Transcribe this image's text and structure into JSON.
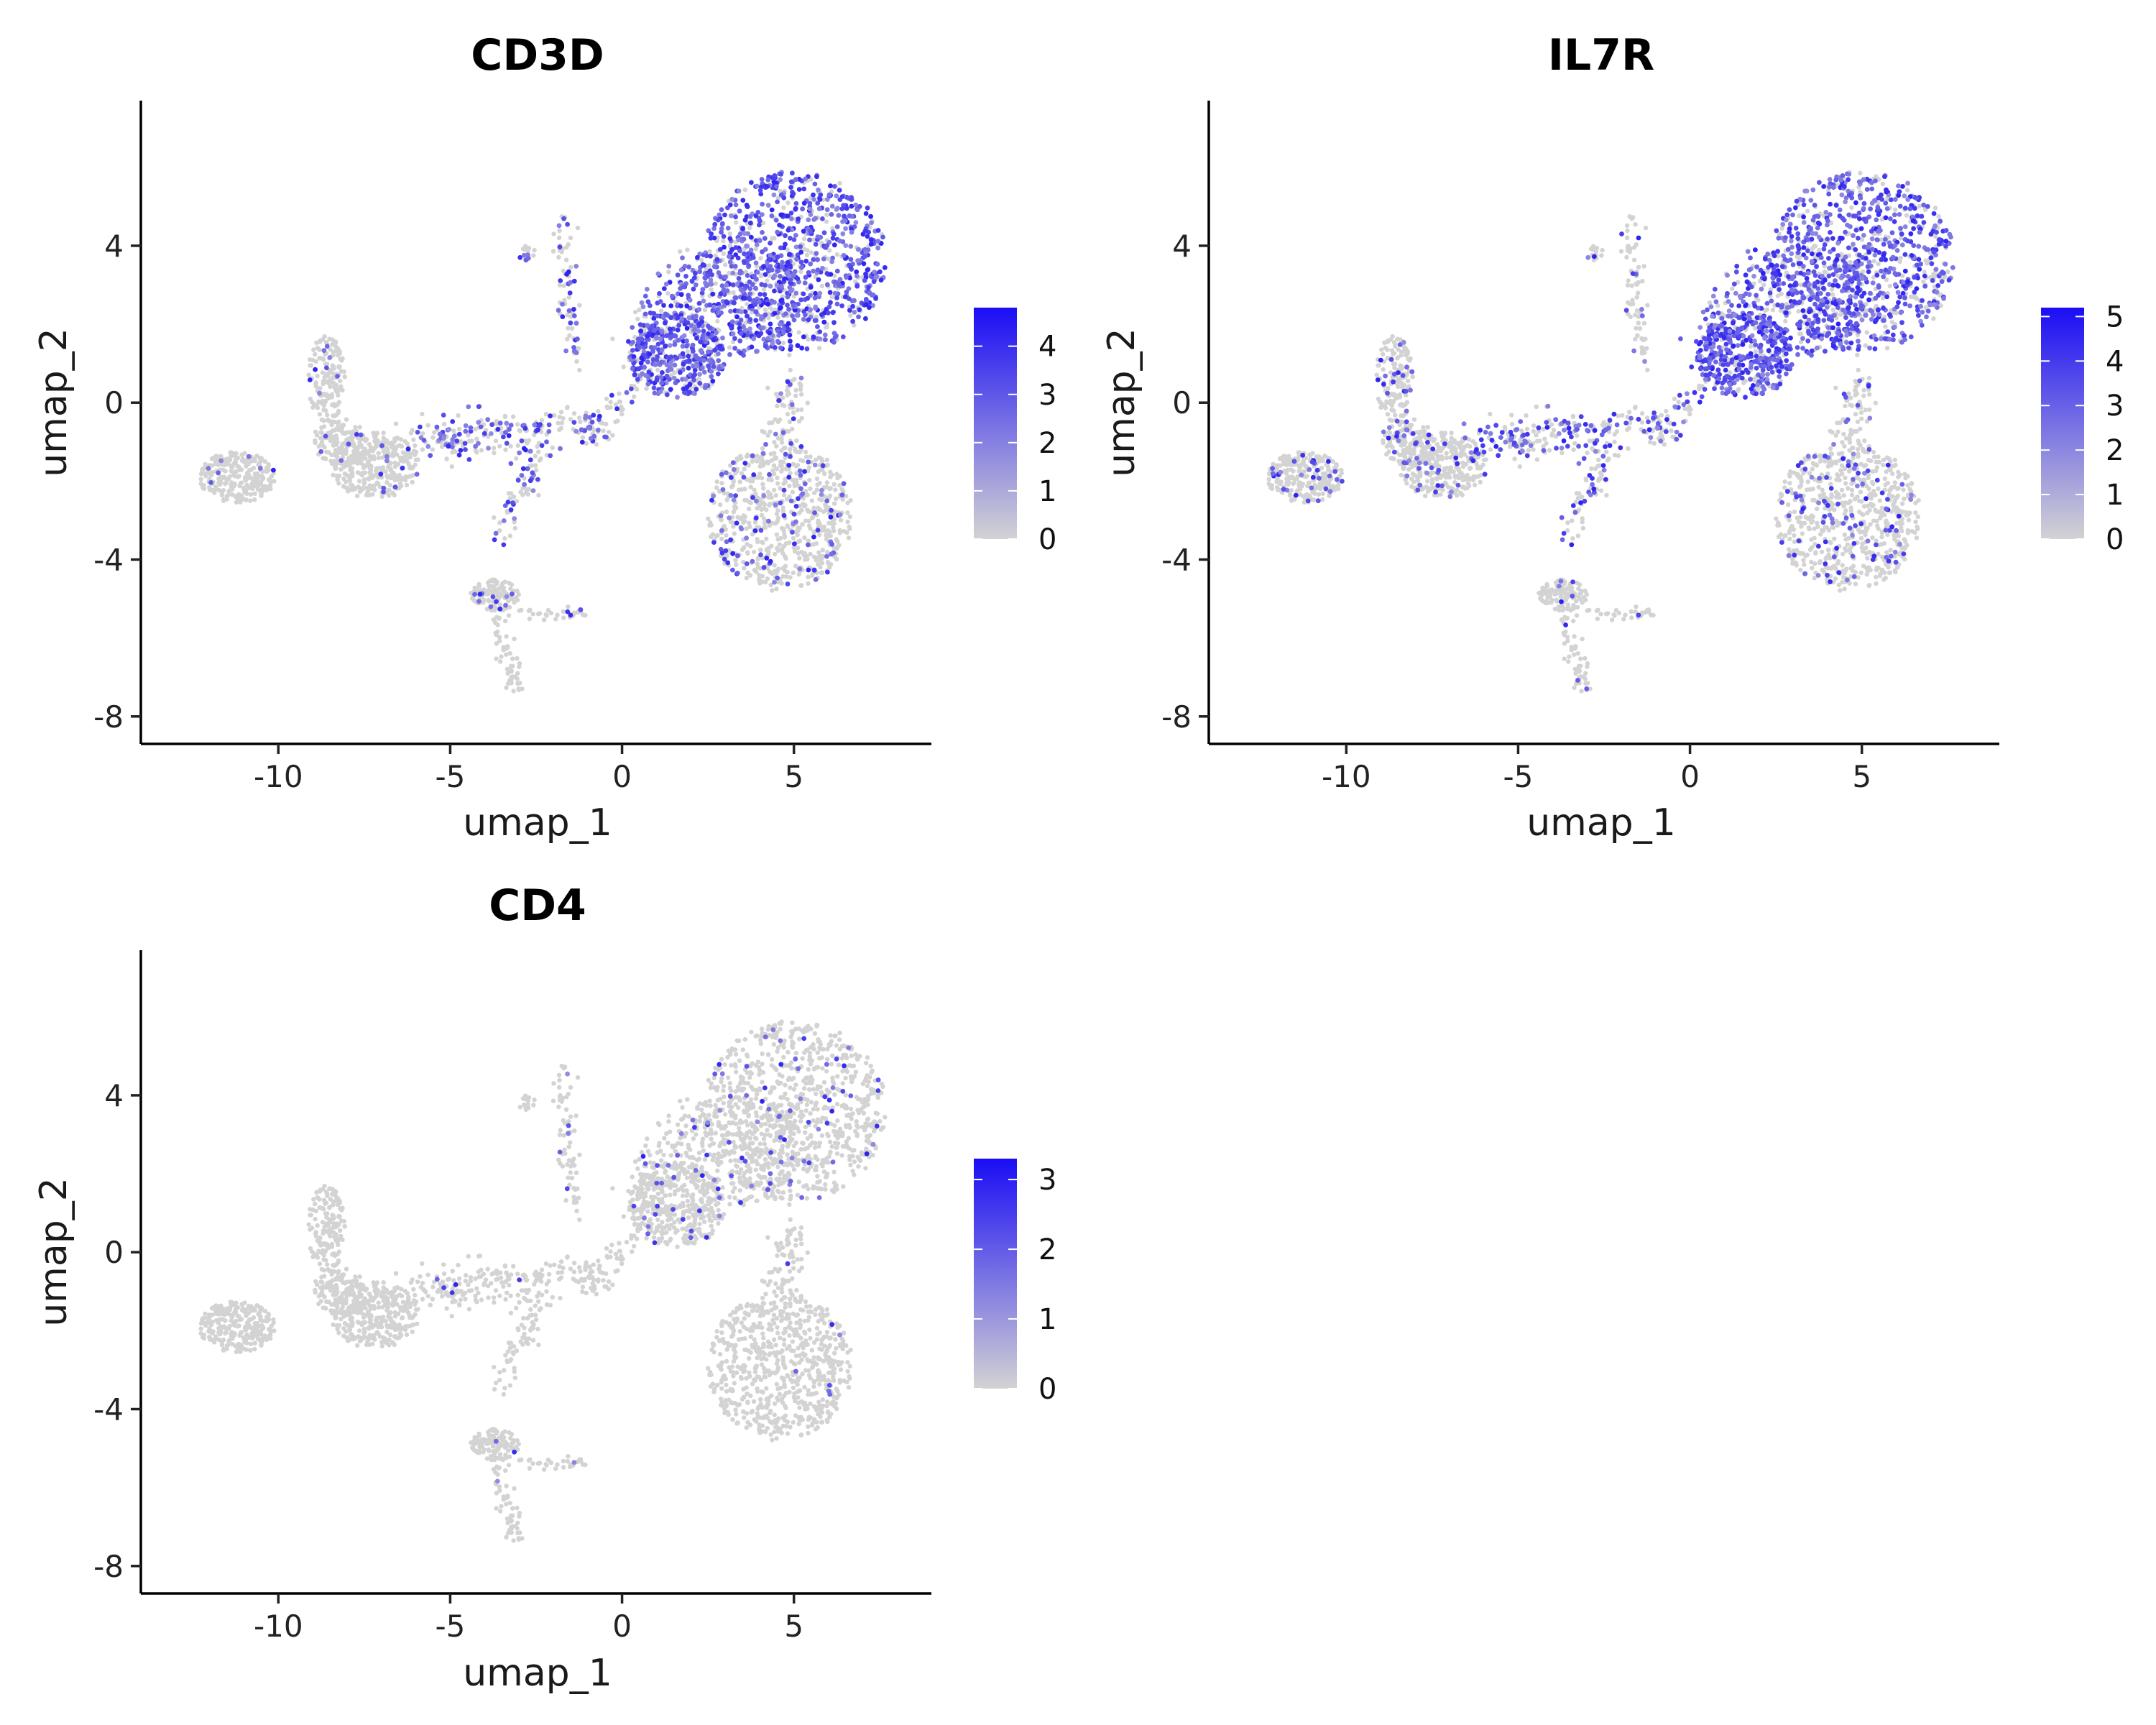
{
  "chart_data": [
    {
      "type": "scatter",
      "title": "CD3D",
      "xlabel": "umap_1",
      "ylabel": "umap_2",
      "xlim": [
        -14,
        9
      ],
      "ylim": [
        -8.7,
        7.7
      ],
      "xticks": [
        -10,
        -5,
        0,
        5
      ],
      "yticks": [
        -8,
        -4,
        0,
        4
      ],
      "x_tick_labels": [
        "-10",
        "-5",
        "0",
        "5"
      ],
      "y_tick_labels": [
        "-8",
        "-4",
        "0",
        "4"
      ],
      "colorbar": {
        "min": 0,
        "max": 4.8,
        "ticks": [
          0,
          1,
          2,
          3,
          4
        ],
        "tick_labels": [
          "0",
          "1",
          "2",
          "3",
          "4"
        ],
        "low_color": "#d3d3d3",
        "high_color": "#1a0df5"
      },
      "expression_pattern": "high in upper-right cluster, moderate in mid-upper cluster and bridge, sparse in lower-right cluster",
      "grid": false
    },
    {
      "type": "scatter",
      "title": "IL7R",
      "xlabel": "umap_1",
      "ylabel": "umap_2",
      "xlim": [
        -14,
        9
      ],
      "ylim": [
        -8.7,
        7.7
      ],
      "xticks": [
        -10,
        -5,
        0,
        5
      ],
      "yticks": [
        -8,
        -4,
        0,
        4
      ],
      "x_tick_labels": [
        "-10",
        "-5",
        "0",
        "5"
      ],
      "y_tick_labels": [
        "-8",
        "-4",
        "0",
        "4"
      ],
      "colorbar": {
        "min": 0,
        "max": 5.2,
        "ticks": [
          0,
          1,
          2,
          3,
          4,
          5
        ],
        "tick_labels": [
          "0",
          "1",
          "2",
          "3",
          "4",
          "5"
        ],
        "low_color": "#d3d3d3",
        "high_color": "#1a0df5"
      },
      "expression_pattern": "high in upper-right and mid-upper clusters, some along bridge, sparse in lower-right cluster",
      "grid": false
    },
    {
      "type": "scatter",
      "title": "CD4",
      "xlabel": "umap_1",
      "ylabel": "umap_2",
      "xlim": [
        -14,
        9
      ],
      "ylim": [
        -8.7,
        7.7
      ],
      "xticks": [
        -10,
        -5,
        0,
        5
      ],
      "yticks": [
        -8,
        -4,
        0,
        4
      ],
      "x_tick_labels": [
        "-10",
        "-5",
        "0",
        "5"
      ],
      "y_tick_labels": [
        "-8",
        "-4",
        "0",
        "4"
      ],
      "colorbar": {
        "min": 0,
        "max": 3.3,
        "ticks": [
          0,
          1,
          2,
          3
        ],
        "tick_labels": [
          "0",
          "1",
          "2",
          "3"
        ],
        "low_color": "#d3d3d3",
        "high_color": "#1a0df5"
      },
      "expression_pattern": "mostly unexpressed; sparse cells in upper-right and mid-upper clusters",
      "grid": false
    }
  ]
}
